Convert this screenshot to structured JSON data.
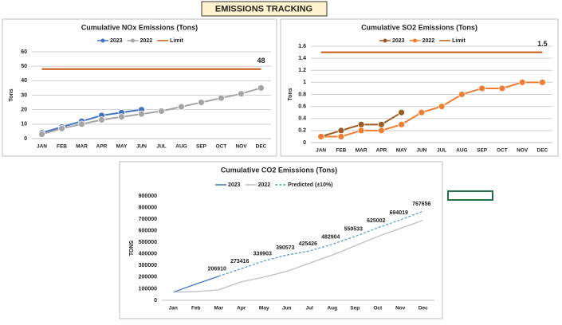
{
  "header": {
    "title": "EMISSIONS TRACKING"
  },
  "chart_data": [
    {
      "type": "line",
      "title": "Cumulative NOx Emissions (Tons)",
      "y_label": "Tons",
      "categories": [
        "JAN",
        "FEB",
        "MAR",
        "APR",
        "MAY",
        "JUN",
        "JUL",
        "AUG",
        "SEP",
        "OCT",
        "NOV",
        "DEC"
      ],
      "ylim": [
        0,
        60
      ],
      "yticks": [
        0,
        10,
        20,
        30,
        40,
        50,
        60
      ],
      "grid": true,
      "series": [
        {
          "name": "2023",
          "color": "#4472c4",
          "marker": true,
          "values": [
            4,
            8,
            12,
            16,
            18,
            20,
            null,
            null,
            null,
            null,
            null,
            null
          ]
        },
        {
          "name": "2022",
          "color": "#a5a5a5",
          "marker": true,
          "values": [
            3,
            7,
            10,
            13,
            15,
            17,
            19,
            22,
            25,
            28,
            31,
            35
          ]
        },
        {
          "name": "Limit",
          "color": "#c55a11",
          "marker": false,
          "values": [
            48,
            48,
            48,
            48,
            48,
            48,
            48,
            48,
            48,
            48,
            48,
            48
          ]
        }
      ]
    },
    {
      "type": "line",
      "title": "Cumulative SO2 Emissions (Tons)",
      "y_label": "Tons",
      "categories": [
        "JAN",
        "FEB",
        "MAR",
        "APR",
        "MAY",
        "JUN",
        "JUL",
        "AUG",
        "SEP",
        "OCT",
        "NOV",
        "DEC"
      ],
      "ylim": [
        0,
        1.6
      ],
      "yticks": [
        0,
        0.2,
        0.4,
        0.6,
        0.8,
        1,
        1.2,
        1.4,
        1.6
      ],
      "grid": true,
      "series": [
        {
          "name": "2023",
          "color": "#9c5b23",
          "marker": true,
          "values": [
            0.1,
            0.2,
            0.3,
            0.3,
            0.5,
            null,
            null,
            null,
            null,
            null,
            null,
            null
          ]
        },
        {
          "name": "2022",
          "color": "#ed7d31",
          "marker": true,
          "values": [
            0.1,
            0.1,
            0.2,
            0.2,
            0.3,
            0.5,
            0.6,
            0.8,
            0.9,
            0.9,
            1,
            1
          ]
        },
        {
          "name": "Limit",
          "color": "#c55a11",
          "marker": false,
          "values": [
            1.5,
            1.5,
            1.5,
            1.5,
            1.5,
            1.5,
            1.5,
            1.5,
            1.5,
            1.5,
            1.5,
            1.5
          ]
        }
      ]
    },
    {
      "type": "line",
      "title": "Cumulative CO2 Emissions (Tons)",
      "y_label": "TONS",
      "categories": [
        "Jan",
        "Feb",
        "Mar",
        "Apr",
        "May",
        "Jun",
        "Jul",
        "Aug",
        "Sep",
        "Oct",
        "Nov",
        "Dec"
      ],
      "ylim": [
        0,
        900000
      ],
      "yticks": [
        0,
        100000,
        200000,
        300000,
        400000,
        500000,
        600000,
        700000,
        800000,
        900000
      ],
      "grid": false,
      "series": [
        {
          "name": "2023",
          "color": "#4472c4",
          "marker": false,
          "values": [
            70000,
            140000,
            206910,
            null,
            null,
            null,
            null,
            null,
            null,
            null,
            null,
            null
          ]
        },
        {
          "name": "2022",
          "color": "#bfbfbf",
          "marker": false,
          "values": [
            70000,
            75000,
            90000,
            160000,
            200000,
            250000,
            320000,
            390000,
            470000,
            550000,
            620000,
            690000
          ]
        },
        {
          "name": "Predicted (±10%)",
          "color": "#5b9bd5",
          "marker": false,
          "dashed": true,
          "values": [
            null,
            null,
            206910,
            273416,
            339903,
            390573,
            425426,
            482904,
            550533,
            625002,
            694019,
            767656
          ]
        }
      ]
    }
  ]
}
